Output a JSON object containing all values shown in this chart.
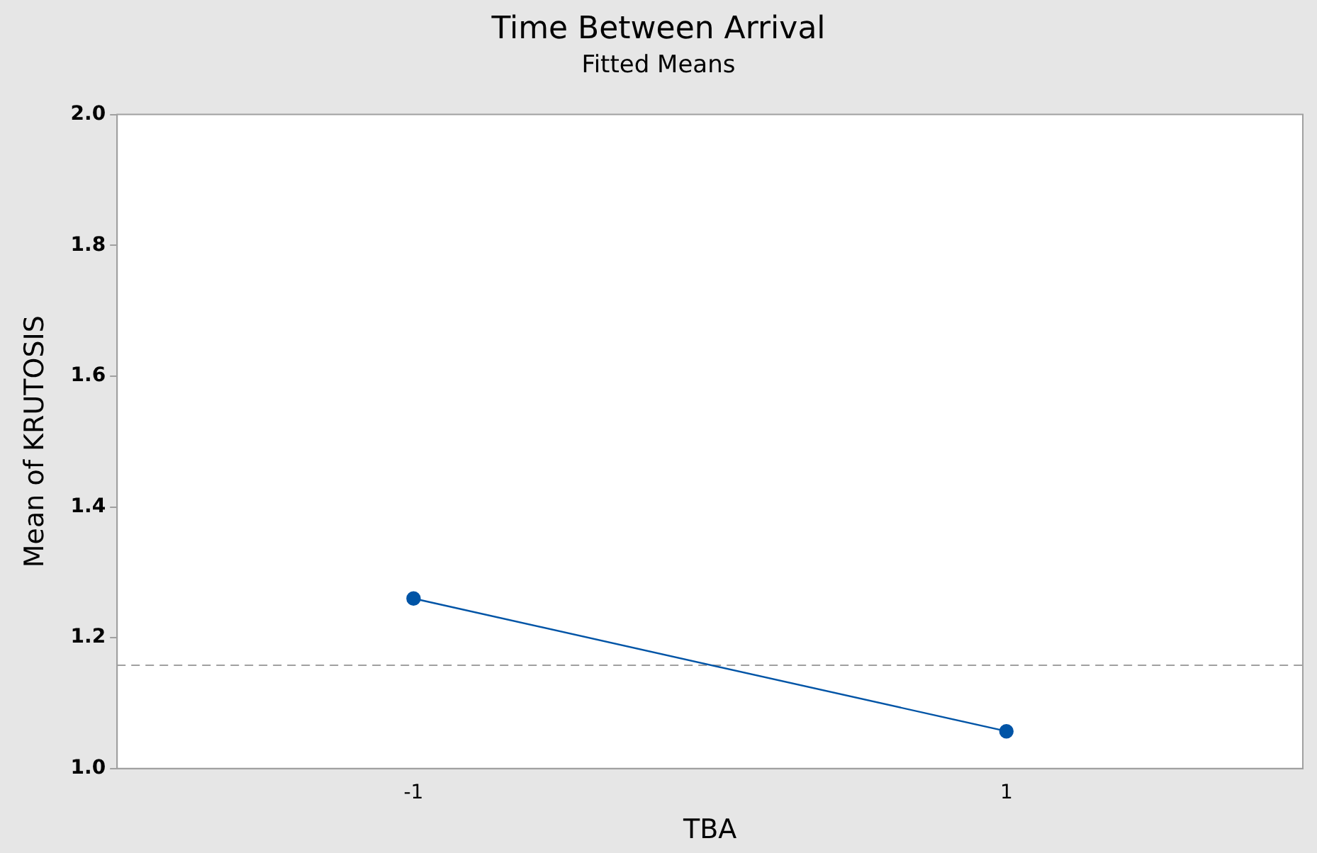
{
  "chart_data": {
    "type": "line",
    "title": "Time Between Arrival",
    "subtitle": "Fitted Means",
    "xlabel": "TBA",
    "ylabel": "Mean of KRUTOSIS",
    "categories": [
      "-1",
      "1"
    ],
    "series": [
      {
        "color": "#0054a6",
        "values": [
          1.26,
          1.057
        ]
      }
    ],
    "ylim": [
      1.0,
      2.0
    ],
    "yticks": [
      {
        "value": 1.0,
        "label": "1.0"
      },
      {
        "value": 1.2,
        "label": "1.2"
      },
      {
        "value": 1.4,
        "label": "1.4"
      },
      {
        "value": 1.6,
        "label": "1.6"
      },
      {
        "value": 1.8,
        "label": "1.8"
      },
      {
        "value": 2.0,
        "label": "2.0"
      }
    ],
    "ref_lines": [
      {
        "axis": "y",
        "value": 1.158,
        "color": "#a0a0a0",
        "line_style": "dashed"
      }
    ],
    "marker": "circle",
    "line_style": "solid",
    "grid": false,
    "legend": false
  }
}
